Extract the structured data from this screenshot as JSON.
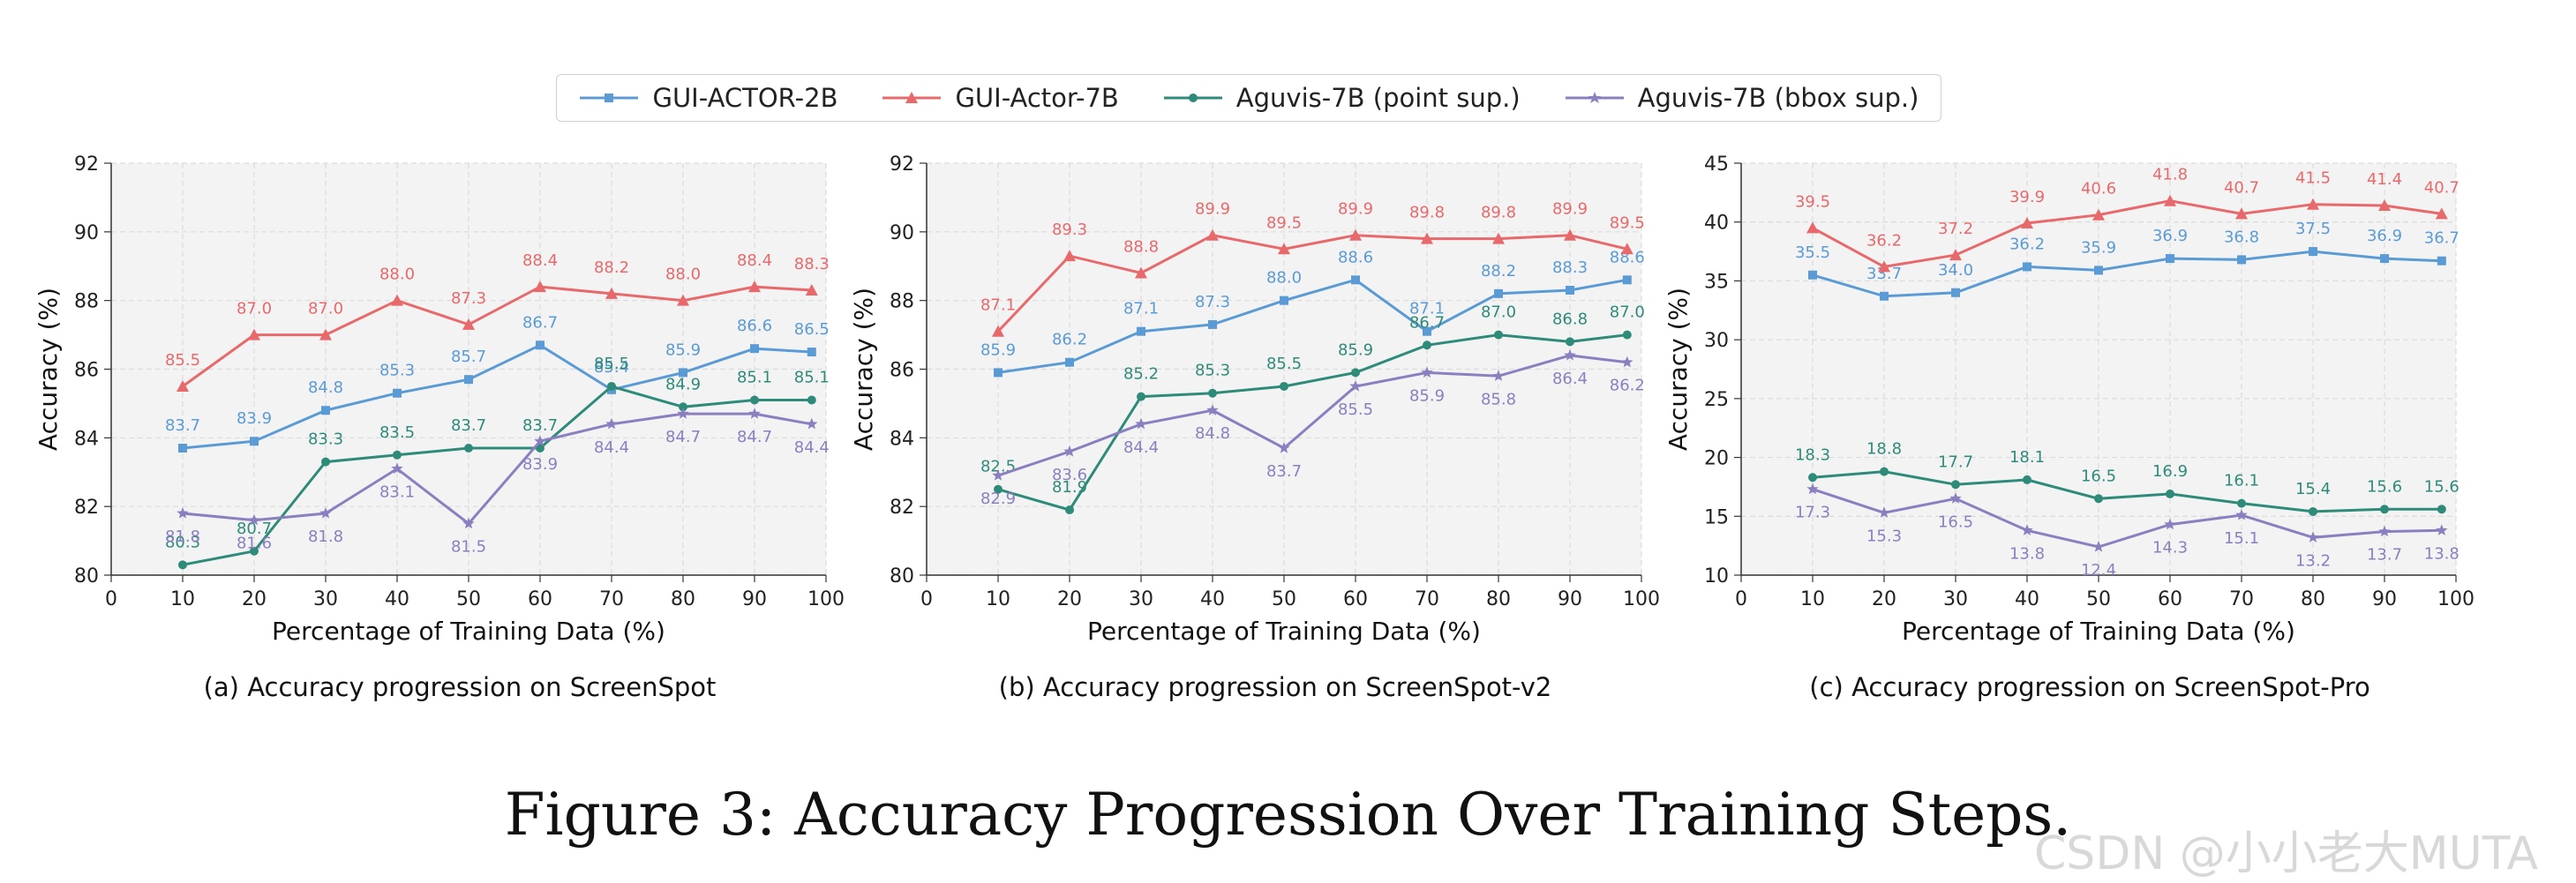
{
  "legend": {
    "items": [
      {
        "label": "GUI-ACTOR-2B",
        "color": "#5b9bd5",
        "marker": "square"
      },
      {
        "label": "GUI-Actor-7B",
        "color": "#e8696b",
        "marker": "triangle"
      },
      {
        "label": "Aguvis-7B (point sup.)",
        "color": "#2e8b7a",
        "marker": "circle"
      },
      {
        "label": "Aguvis-7B (bbox sup.)",
        "color": "#8b7fc0",
        "marker": "star"
      }
    ]
  },
  "figure_caption": "Figure 3: Accuracy Progression Over Training Steps.",
  "watermark": "CSDN @小小老大MUTA",
  "chart_data": [
    {
      "type": "line",
      "caption": "(a) Accuracy progression on ScreenSpot",
      "xlabel": "Percentage of Training Data (%)",
      "ylabel": "Accuracy (%)",
      "xlim": [
        0,
        100
      ],
      "ylim": [
        80,
        92
      ],
      "xticks": [
        0,
        10,
        20,
        30,
        40,
        50,
        60,
        70,
        80,
        90,
        100
      ],
      "yticks": [
        80,
        82,
        84,
        86,
        88,
        90,
        92
      ],
      "grid": true,
      "x": [
        10,
        20,
        30,
        40,
        50,
        60,
        70,
        80,
        90,
        98
      ],
      "series": [
        {
          "name": "GUI-ACTOR-2B",
          "values": [
            83.7,
            83.9,
            84.8,
            85.3,
            85.7,
            86.7,
            85.4,
            85.9,
            86.6,
            86.5
          ],
          "labels": [
            "83.7",
            "83.9",
            "84.8",
            "85.3",
            "85.7",
            "86.7",
            "85.4",
            "85.9",
            "86.6",
            "86.5"
          ]
        },
        {
          "name": "GUI-Actor-7B",
          "values": [
            85.5,
            87.0,
            87.0,
            88.0,
            87.3,
            88.4,
            88.2,
            88.0,
            88.4,
            88.3
          ],
          "labels": [
            "85.5",
            "87.0",
            "87.0",
            "88.0",
            "87.3",
            "88.4",
            "88.2",
            "88.0",
            "88.4",
            "88.3"
          ]
        },
        {
          "name": "Aguvis-7B (point sup.)",
          "values": [
            80.3,
            80.7,
            83.3,
            83.5,
            83.7,
            83.7,
            85.5,
            84.9,
            85.1,
            85.1
          ],
          "labels": [
            "80.3",
            "80.7",
            "83.3",
            "83.5",
            "83.7",
            "83.7",
            "85.5",
            "84.9",
            "85.1",
            "85.1"
          ]
        },
        {
          "name": "Aguvis-7B (bbox sup.)",
          "values": [
            81.8,
            81.6,
            81.8,
            83.1,
            81.5,
            83.9,
            84.4,
            84.7,
            84.7,
            84.4
          ],
          "labels": [
            "81.8",
            "81.6",
            "81.8",
            "83.1",
            "81.5",
            "83.9",
            "84.4",
            "84.7",
            "84.7",
            "84.4"
          ]
        }
      ]
    },
    {
      "type": "line",
      "caption": "(b) Accuracy progression on ScreenSpot-v2",
      "xlabel": "Percentage of Training Data (%)",
      "ylabel": "Accuracy (%)",
      "xlim": [
        0,
        100
      ],
      "ylim": [
        80,
        92
      ],
      "xticks": [
        0,
        10,
        20,
        30,
        40,
        50,
        60,
        70,
        80,
        90,
        100
      ],
      "yticks": [
        80,
        82,
        84,
        86,
        88,
        90,
        92
      ],
      "grid": true,
      "x": [
        10,
        20,
        30,
        40,
        50,
        60,
        70,
        80,
        90,
        98
      ],
      "series": [
        {
          "name": "GUI-ACTOR-2B",
          "values": [
            85.9,
            86.2,
            87.1,
            87.3,
            88.0,
            88.6,
            87.1,
            88.2,
            88.3,
            88.6
          ],
          "labels": [
            "85.9",
            "86.2",
            "87.1",
            "87.3",
            "88.0",
            "88.6",
            "87.1",
            "88.2",
            "88.3",
            "88.6"
          ]
        },
        {
          "name": "GUI-Actor-7B",
          "values": [
            87.1,
            89.3,
            88.8,
            89.9,
            89.5,
            89.9,
            89.8,
            89.8,
            89.9,
            89.5
          ],
          "labels": [
            "87.1",
            "89.3",
            "88.8",
            "89.9",
            "89.5",
            "89.9",
            "89.8",
            "89.8",
            "89.9",
            "89.5"
          ]
        },
        {
          "name": "Aguvis-7B (point sup.)",
          "values": [
            82.5,
            81.9,
            85.2,
            85.3,
            85.5,
            85.9,
            86.7,
            87.0,
            86.8,
            87.0
          ],
          "labels": [
            "82.5",
            "81.9",
            "85.2",
            "85.3",
            "85.5",
            "85.9",
            "86.7",
            "87.0",
            "86.8",
            "87.0"
          ]
        },
        {
          "name": "Aguvis-7B (bbox sup.)",
          "values": [
            82.9,
            83.6,
            84.4,
            84.8,
            83.7,
            85.5,
            85.9,
            85.8,
            86.4,
            86.2
          ],
          "labels": [
            "82.9",
            "83.6",
            "84.4",
            "84.8",
            "83.7",
            "85.5",
            "85.9",
            "85.8",
            "86.4",
            "86.2"
          ]
        }
      ]
    },
    {
      "type": "line",
      "caption": "(c) Accuracy progression on ScreenSpot-Pro",
      "xlabel": "Percentage of Training Data (%)",
      "ylabel": "Accuracy (%)",
      "xlim": [
        0,
        100
      ],
      "ylim": [
        10,
        45
      ],
      "xticks": [
        0,
        10,
        20,
        30,
        40,
        50,
        60,
        70,
        80,
        90,
        100
      ],
      "yticks": [
        10,
        15,
        20,
        25,
        30,
        35,
        40,
        45
      ],
      "grid": true,
      "x": [
        10,
        20,
        30,
        40,
        50,
        60,
        70,
        80,
        90,
        98
      ],
      "series": [
        {
          "name": "GUI-ACTOR-2B",
          "values": [
            35.5,
            33.7,
            34.0,
            36.2,
            35.9,
            36.9,
            36.8,
            37.5,
            36.9,
            36.7
          ],
          "labels": [
            "35.5",
            "33.7",
            "34.0",
            "36.2",
            "35.9",
            "36.9",
            "36.8",
            "37.5",
            "36.9",
            "36.7"
          ]
        },
        {
          "name": "GUI-Actor-7B",
          "values": [
            39.5,
            36.2,
            37.2,
            39.9,
            40.6,
            41.8,
            40.7,
            41.5,
            41.4,
            40.7
          ],
          "labels": [
            "39.5",
            "36.2",
            "37.2",
            "39.9",
            "40.6",
            "41.8",
            "40.7",
            "41.5",
            "41.4",
            "40.7"
          ]
        },
        {
          "name": "Aguvis-7B (point sup.)",
          "values": [
            18.3,
            18.8,
            17.7,
            18.1,
            16.5,
            16.9,
            16.1,
            15.4,
            15.6,
            15.6
          ],
          "labels": [
            "18.3",
            "18.8",
            "17.7",
            "18.1",
            "16.5",
            "16.9",
            "16.1",
            "15.4",
            "15.6",
            "15.6"
          ]
        },
        {
          "name": "Aguvis-7B (bbox sup.)",
          "values": [
            17.3,
            15.3,
            16.5,
            13.8,
            12.4,
            14.3,
            15.1,
            13.2,
            13.7,
            13.8
          ],
          "labels": [
            "17.3",
            "15.3",
            "16.5",
            "13.8",
            "12.4",
            "14.3",
            "15.1",
            "13.2",
            "13.7",
            "13.8"
          ]
        }
      ]
    }
  ]
}
